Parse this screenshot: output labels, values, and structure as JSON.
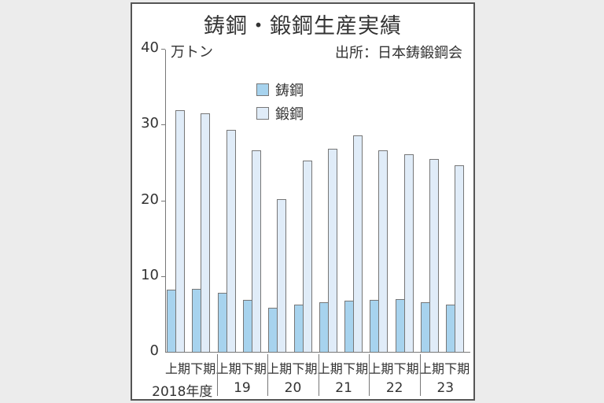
{
  "title": "鋳鋼・鍛鋼生産実績",
  "unit": "万トン",
  "source": "出所：日本鋳鍛鋼会",
  "legend": [
    {
      "label": "鋳鋼",
      "color": "#a7d3ee"
    },
    {
      "label": "鍛鋼",
      "color": "#e0ecf8"
    }
  ],
  "yticks": [
    "0",
    "10",
    "20",
    "30",
    "40"
  ],
  "half_labels": [
    "上期",
    "下期",
    "上期",
    "下期",
    "上期",
    "下期",
    "上期",
    "下期",
    "上期",
    "下期",
    "上期",
    "下期"
  ],
  "year_labels": [
    "2018年度",
    "19",
    "20",
    "21",
    "22",
    "23"
  ],
  "chart_data": {
    "type": "bar",
    "title": "鋳鋼・鍛鋼生産実績",
    "ylabel": "万トン",
    "ylim": [
      0,
      40
    ],
    "source": "出所：日本鋳鍛鋼会",
    "categories": [
      "2018上期",
      "2018下期",
      "2019上期",
      "2019下期",
      "2020上期",
      "2020下期",
      "2021上期",
      "2021下期",
      "2022上期",
      "2022下期",
      "2023上期",
      "2023下期"
    ],
    "series": [
      {
        "name": "鋳鋼",
        "color": "#a7d3ee",
        "values": [
          8.2,
          8.3,
          7.8,
          6.9,
          5.8,
          6.2,
          6.5,
          6.8,
          6.9,
          7.0,
          6.5,
          6.2
        ]
      },
      {
        "name": "鍛鋼",
        "color": "#e0ecf8",
        "values": [
          31.9,
          31.5,
          29.3,
          26.6,
          20.2,
          25.2,
          26.8,
          28.6,
          26.6,
          26.1,
          25.5,
          24.6
        ]
      }
    ],
    "legend_position": "upper-center",
    "grid": false
  }
}
